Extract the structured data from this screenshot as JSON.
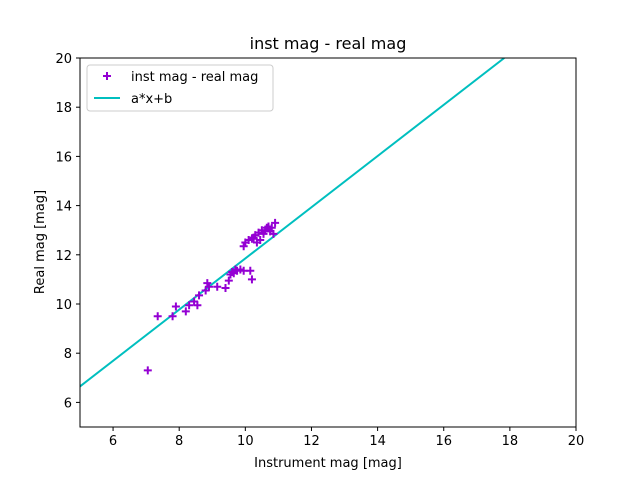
{
  "chart_data": {
    "type": "scatter",
    "title": "inst mag - real mag",
    "xlabel": "Instrument mag [mag]",
    "ylabel": "Real mag [mag]",
    "xlim": [
      5,
      20
    ],
    "ylim": [
      5,
      20
    ],
    "xticks": [
      6,
      8,
      10,
      12,
      14,
      16,
      18,
      20
    ],
    "yticks": [
      6,
      8,
      10,
      12,
      14,
      16,
      18,
      20
    ],
    "grid": false,
    "legend_position": "top-left",
    "series": [
      {
        "name": "inst mag - real mag",
        "kind": "scatter",
        "marker": "+",
        "color": "#9400D3",
        "points": [
          [
            7.05,
            7.3
          ],
          [
            7.35,
            9.5
          ],
          [
            7.8,
            9.5
          ],
          [
            7.9,
            9.9
          ],
          [
            8.2,
            9.7
          ],
          [
            8.3,
            9.95
          ],
          [
            8.45,
            10.1
          ],
          [
            8.55,
            9.95
          ],
          [
            8.6,
            10.35
          ],
          [
            8.8,
            10.55
          ],
          [
            8.85,
            10.85
          ],
          [
            8.9,
            10.7
          ],
          [
            9.15,
            10.7
          ],
          [
            9.4,
            10.65
          ],
          [
            9.5,
            10.95
          ],
          [
            9.55,
            11.2
          ],
          [
            9.6,
            11.3
          ],
          [
            9.65,
            11.25
          ],
          [
            9.7,
            11.4
          ],
          [
            9.75,
            11.35
          ],
          [
            9.85,
            11.4
          ],
          [
            9.95,
            11.35
          ],
          [
            10.15,
            11.35
          ],
          [
            10.2,
            11.0
          ],
          [
            9.95,
            12.35
          ],
          [
            10.0,
            12.5
          ],
          [
            10.1,
            12.6
          ],
          [
            10.2,
            12.65
          ],
          [
            10.25,
            12.7
          ],
          [
            10.3,
            12.8
          ],
          [
            10.35,
            12.5
          ],
          [
            10.4,
            12.9
          ],
          [
            10.45,
            12.6
          ],
          [
            10.5,
            13.0
          ],
          [
            10.55,
            12.85
          ],
          [
            10.6,
            13.0
          ],
          [
            10.65,
            13.1
          ],
          [
            10.7,
            13.15
          ],
          [
            10.75,
            12.95
          ],
          [
            10.8,
            13.1
          ],
          [
            10.85,
            12.85
          ],
          [
            10.9,
            13.3
          ]
        ]
      },
      {
        "name": "a*x+b",
        "kind": "line",
        "color": "#00BFBF",
        "points": [
          [
            5.0,
            6.65
          ],
          [
            17.83,
            20.0
          ]
        ]
      }
    ]
  }
}
